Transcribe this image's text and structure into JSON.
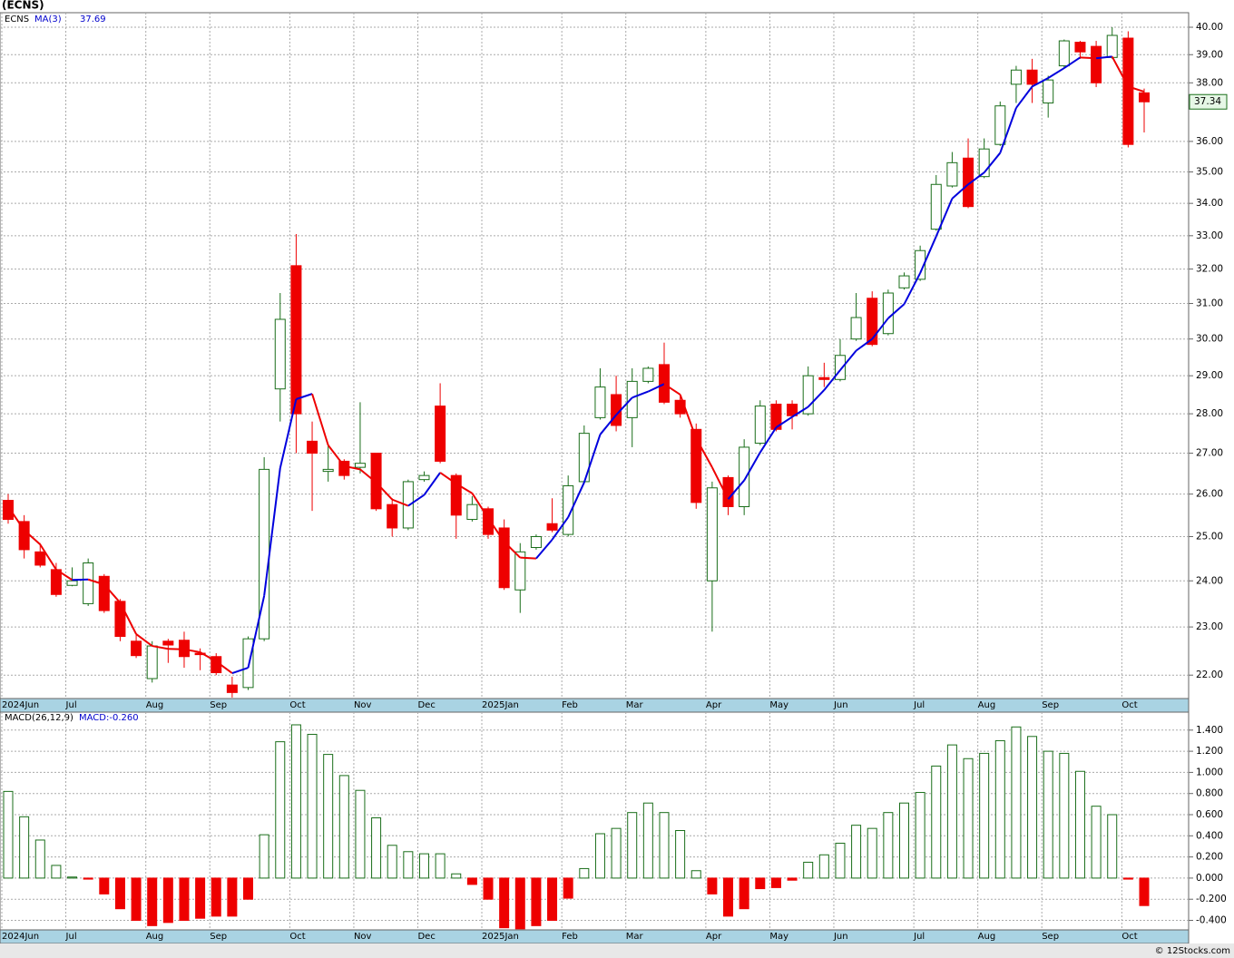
{
  "chart_data": [
    {
      "type": "candlestick",
      "title": "(ECNS)",
      "symbol": "ECNS",
      "source": "© 12Stocks.com",
      "categories": [
        "2024Jun",
        null,
        null,
        null,
        "Jul",
        null,
        null,
        null,
        null,
        "Aug",
        null,
        null,
        null,
        "Sep",
        null,
        null,
        null,
        null,
        "Oct",
        null,
        null,
        null,
        "Nov",
        null,
        null,
        null,
        "Dec",
        null,
        null,
        null,
        "2025Jan",
        null,
        null,
        null,
        null,
        "Feb",
        null,
        null,
        null,
        "Mar",
        null,
        null,
        null,
        null,
        "Apr",
        null,
        null,
        null,
        "May",
        null,
        null,
        null,
        "Jun",
        null,
        null,
        null,
        null,
        "Jul",
        null,
        null,
        null,
        "Aug",
        null,
        null,
        null,
        "Sep",
        null,
        null,
        null,
        null,
        "Oct",
        null
      ],
      "open": [
        25.85,
        25.35,
        24.65,
        24.25,
        23.9,
        23.5,
        24.1,
        23.55,
        22.7,
        21.93,
        22.7,
        22.72,
        22.45,
        22.38,
        21.8,
        21.75,
        22.75,
        28.65,
        32.1,
        27.3,
        26.55,
        26.8,
        26.65,
        27.0,
        25.75,
        25.2,
        26.35,
        28.2,
        26.45,
        25.4,
        25.65,
        25.2,
        23.8,
        24.75,
        25.3,
        25.05,
        26.3,
        27.9,
        28.5,
        27.9,
        28.85,
        29.3,
        28.35,
        27.6,
        24.0,
        26.4,
        25.7,
        27.25,
        28.25,
        28.25,
        28.0,
        28.95,
        28.9,
        30.0,
        31.15,
        30.15,
        31.45,
        31.7,
        33.2,
        34.55,
        35.45,
        34.85,
        35.9,
        37.95,
        38.45,
        37.3,
        38.6,
        39.45,
        39.3,
        38.9,
        39.6,
        37.65
      ],
      "high": [
        26.0,
        25.5,
        24.85,
        24.4,
        24.3,
        24.5,
        24.15,
        23.6,
        22.85,
        22.7,
        22.75,
        22.9,
        22.55,
        22.45,
        21.97,
        22.8,
        26.9,
        31.3,
        33.05,
        27.8,
        27.2,
        26.85,
        28.3,
        27.0,
        25.9,
        26.35,
        26.55,
        28.8,
        26.5,
        25.95,
        25.7,
        25.4,
        24.85,
        25.05,
        25.9,
        26.45,
        27.7,
        29.2,
        29.0,
        29.2,
        29.25,
        29.9,
        28.45,
        27.75,
        26.3,
        26.45,
        27.35,
        28.35,
        28.35,
        28.35,
        29.25,
        29.35,
        30.0,
        31.3,
        31.35,
        31.4,
        31.9,
        32.7,
        34.9,
        35.65,
        36.1,
        36.1,
        37.35,
        38.6,
        38.85,
        38.25,
        39.55,
        39.5,
        39.5,
        40.0,
        39.85,
        37.8
      ],
      "low": [
        25.3,
        24.5,
        24.3,
        23.65,
        23.88,
        23.45,
        23.3,
        22.7,
        22.35,
        21.85,
        22.25,
        22.15,
        22.1,
        22.0,
        21.55,
        21.7,
        22.7,
        27.8,
        27.0,
        25.6,
        26.3,
        26.35,
        26.5,
        25.6,
        25.0,
        25.15,
        26.3,
        26.75,
        24.95,
        25.35,
        24.95,
        23.8,
        23.3,
        24.7,
        25.1,
        25.0,
        26.25,
        27.85,
        27.55,
        27.15,
        28.8,
        28.25,
        27.9,
        25.65,
        22.9,
        25.5,
        25.5,
        27.2,
        27.55,
        27.6,
        27.95,
        28.7,
        28.85,
        29.95,
        29.8,
        30.1,
        31.4,
        31.65,
        33.15,
        34.5,
        33.85,
        34.8,
        35.85,
        37.3,
        37.3,
        36.8,
        38.5,
        38.85,
        37.85,
        38.85,
        35.8,
        36.3
      ],
      "close": [
        25.4,
        24.7,
        24.35,
        23.7,
        24.0,
        24.4,
        23.35,
        22.8,
        22.4,
        22.6,
        22.62,
        22.38,
        22.42,
        22.05,
        21.65,
        22.75,
        26.6,
        30.55,
        28.0,
        27.0,
        26.6,
        26.45,
        26.75,
        25.65,
        25.2,
        26.3,
        26.45,
        26.8,
        25.5,
        25.75,
        25.05,
        23.85,
        24.65,
        25.0,
        25.15,
        26.2,
        27.5,
        28.7,
        27.7,
        28.85,
        29.2,
        28.3,
        28.0,
        25.8,
        26.15,
        25.7,
        27.15,
        28.2,
        27.6,
        27.95,
        29.0,
        28.9,
        29.55,
        30.6,
        29.85,
        31.3,
        31.8,
        32.55,
        34.6,
        35.3,
        33.9,
        35.75,
        37.2,
        38.45,
        37.95,
        38.1,
        39.5,
        39.1,
        38.0,
        39.7,
        35.9,
        37.34
      ],
      "last_label": "37.34",
      "up_color": "#1a6e1a",
      "down_color": "#ee0000",
      "series": [
        {
          "name": "MA(3)",
          "value_label": "37.69",
          "up_color": "#0000dd",
          "down_color": "#ee0000",
          "values": [
            25.7,
            25.15,
            24.82,
            24.25,
            24.02,
            24.03,
            23.92,
            23.52,
            22.85,
            22.6,
            22.54,
            22.53,
            22.47,
            22.28,
            22.04,
            22.15,
            23.67,
            26.63,
            28.38,
            28.52,
            27.2,
            26.68,
            26.6,
            26.28,
            25.87,
            25.72,
            25.98,
            26.52,
            26.25,
            26.02,
            25.43,
            24.88,
            24.52,
            24.5,
            24.93,
            25.45,
            26.28,
            27.47,
            27.97,
            28.42,
            28.58,
            28.78,
            28.5,
            27.37,
            26.65,
            25.88,
            26.33,
            27.02,
            27.65,
            27.92,
            28.18,
            28.62,
            29.15,
            29.68,
            30.0,
            30.58,
            30.98,
            31.88,
            32.98,
            34.15,
            34.6,
            34.98,
            35.62,
            37.13,
            37.87,
            38.17,
            38.52,
            38.9,
            38.87,
            38.93,
            37.87,
            37.69
          ]
        }
      ],
      "ylim": [
        21.53,
        40.54
      ],
      "log_scale": true,
      "grid": true,
      "yticks": [
        {
          "value": 22,
          "label": "22.00"
        },
        {
          "value": 23,
          "label": "23.00"
        },
        {
          "value": 24,
          "label": "24.00"
        },
        {
          "value": 25,
          "label": "25.00"
        },
        {
          "value": 26,
          "label": "26.00"
        },
        {
          "value": 27,
          "label": "27.00"
        },
        {
          "value": 28,
          "label": "28.00"
        },
        {
          "value": 29,
          "label": "29.00"
        },
        {
          "value": 30,
          "label": "30.00"
        },
        {
          "value": 31,
          "label": "31.00"
        },
        {
          "value": 32,
          "label": "32.00"
        },
        {
          "value": 33,
          "label": "33.00"
        },
        {
          "value": 34,
          "label": "34.00"
        },
        {
          "value": 35,
          "label": "35.00"
        },
        {
          "value": 36,
          "label": "36.00"
        },
        {
          "value": 38,
          "label": "38.00"
        },
        {
          "value": 39,
          "label": "39.00"
        },
        {
          "value": 40,
          "label": "40.00"
        }
      ]
    },
    {
      "type": "bar",
      "title": "MACD(26,12,9)",
      "series": [
        {
          "label": "MACD:-0.260",
          "value_label": "-0.260",
          "values": [
            0.82,
            0.58,
            0.36,
            0.12,
            0.01,
            -0.01,
            -0.15,
            -0.29,
            -0.4,
            -0.45,
            -0.42,
            -0.4,
            -0.38,
            -0.36,
            -0.36,
            -0.2,
            0.41,
            1.29,
            1.45,
            1.36,
            1.17,
            0.97,
            0.83,
            0.57,
            0.31,
            0.25,
            0.23,
            0.23,
            0.04,
            -0.06,
            -0.2,
            -0.47,
            -0.48,
            -0.45,
            -0.4,
            -0.19,
            0.09,
            0.42,
            0.47,
            0.62,
            0.71,
            0.62,
            0.45,
            0.07,
            -0.15,
            -0.36,
            -0.29,
            -0.1,
            -0.09,
            -0.02,
            0.15,
            0.22,
            0.33,
            0.5,
            0.47,
            0.62,
            0.71,
            0.81,
            1.06,
            1.26,
            1.13,
            1.18,
            1.3,
            1.43,
            1.34,
            1.2,
            1.18,
            1.01,
            0.68,
            0.6,
            -0.01,
            -0.26
          ]
        }
      ],
      "up_color": "#1a6e1a",
      "down_color": "#ee0000",
      "ylim": [
        -0.49,
        1.57
      ],
      "grid": true,
      "yticks": [
        {
          "value": -0.4,
          "label": "-0.400"
        },
        {
          "value": -0.2,
          "label": "-0.200"
        },
        {
          "value": 0,
          "label": "0.000"
        },
        {
          "value": 0.2,
          "label": "0.200"
        },
        {
          "value": 0.4,
          "label": "0.400"
        },
        {
          "value": 0.6,
          "label": "0.600"
        },
        {
          "value": 0.8,
          "label": "0.800"
        },
        {
          "value": 1.0,
          "label": "1.000"
        },
        {
          "value": 1.2,
          "label": "1.200"
        },
        {
          "value": 1.4,
          "label": "1.400"
        }
      ]
    }
  ]
}
